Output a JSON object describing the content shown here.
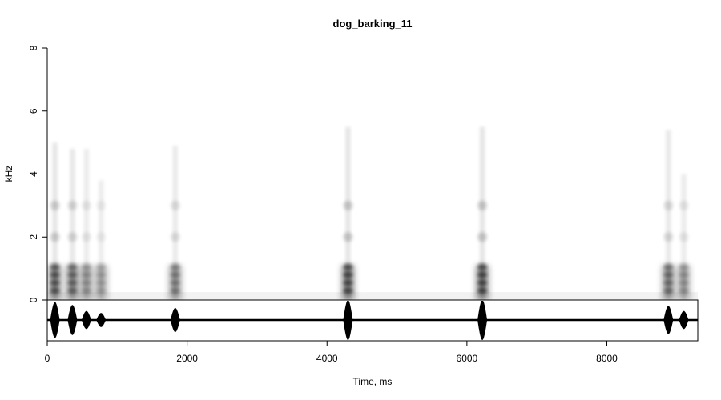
{
  "chart_data": {
    "type": "heatmap",
    "title": "dog_barking_11",
    "xlabel": "Time, ms",
    "ylabel": "kHz",
    "xlim": [
      0,
      9300
    ],
    "ylim": [
      0,
      8
    ],
    "x_ticks": [
      0,
      2000,
      4000,
      6000,
      8000
    ],
    "x_tick_labels": [
      "0",
      "2000",
      "4000",
      "6000",
      "8000"
    ],
    "y_ticks": [
      0,
      2,
      4,
      6,
      8
    ],
    "y_tick_labels": [
      "0",
      "2",
      "4",
      "6",
      "8"
    ],
    "grid": false,
    "colors": {
      "spectrogram": "#000000",
      "oscillogram": "#000000",
      "background": "#ffffff"
    },
    "bark_events": [
      {
        "time_ms": 110,
        "max_khz": 5.0,
        "amplitude": 0.9
      },
      {
        "time_ms": 360,
        "max_khz": 4.8,
        "amplitude": 0.75
      },
      {
        "time_ms": 560,
        "max_khz": 4.8,
        "amplitude": 0.45
      },
      {
        "time_ms": 770,
        "max_khz": 3.8,
        "amplitude": 0.35
      },
      {
        "time_ms": 1830,
        "max_khz": 4.9,
        "amplitude": 0.6
      },
      {
        "time_ms": 4300,
        "max_khz": 5.5,
        "amplitude": 1.0
      },
      {
        "time_ms": 6220,
        "max_khz": 5.5,
        "amplitude": 1.0
      },
      {
        "time_ms": 8880,
        "max_khz": 5.4,
        "amplitude": 0.7
      },
      {
        "time_ms": 9100,
        "max_khz": 4.0,
        "amplitude": 0.45
      }
    ],
    "harmonics_khz": [
      0.3,
      0.55,
      0.8,
      1.05,
      2.0,
      3.0
    ]
  }
}
